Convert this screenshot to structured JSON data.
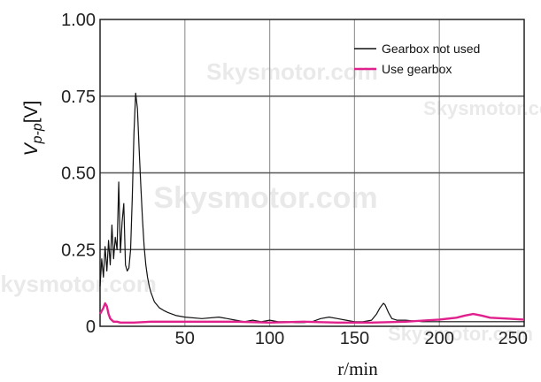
{
  "chart_data": {
    "type": "line",
    "xlabel": "r/min",
    "ylabel": "V",
    "ylabel_sub": "p-p",
    "ylabel_unit": "[V]",
    "xlim": [
      0,
      250
    ],
    "ylim": [
      0,
      1.0
    ],
    "xticks": [
      50,
      100,
      150,
      200,
      250
    ],
    "xtick_labels": [
      "50",
      "100",
      "150",
      "200",
      "250"
    ],
    "yticks": [
      0,
      0.25,
      0.5,
      0.75,
      1.0
    ],
    "ytick_labels": [
      "0",
      "0.25",
      "0.50",
      "0.75",
      "1.00"
    ],
    "grid": true,
    "legend_position": "top-right",
    "watermark": "Skysmotor.com",
    "series": [
      {
        "name": "Gearbox not used",
        "color": "#111111",
        "x": [
          0,
          1,
          2,
          3,
          4,
          5,
          6,
          7,
          8,
          9,
          10,
          11,
          12,
          13,
          14,
          15,
          16,
          17,
          18,
          19,
          20,
          21,
          22,
          23,
          24,
          25,
          26,
          27,
          28,
          29,
          30,
          32,
          35,
          38,
          40,
          45,
          50,
          60,
          70,
          75,
          80,
          85,
          90,
          95,
          100,
          105,
          110,
          115,
          120,
          125,
          130,
          135,
          140,
          145,
          150,
          155,
          160,
          163,
          165,
          167,
          168,
          170,
          172,
          175,
          180,
          190,
          200,
          210,
          220,
          230,
          240,
          250
        ],
        "y": [
          0.13,
          0.22,
          0.16,
          0.26,
          0.18,
          0.28,
          0.2,
          0.33,
          0.22,
          0.29,
          0.25,
          0.47,
          0.24,
          0.34,
          0.4,
          0.2,
          0.18,
          0.19,
          0.25,
          0.42,
          0.63,
          0.76,
          0.71,
          0.58,
          0.46,
          0.35,
          0.26,
          0.2,
          0.16,
          0.13,
          0.11,
          0.08,
          0.06,
          0.05,
          0.045,
          0.035,
          0.03,
          0.025,
          0.03,
          0.025,
          0.02,
          0.015,
          0.02,
          0.015,
          0.02,
          0.015,
          0.015,
          0.012,
          0.012,
          0.015,
          0.025,
          0.03,
          0.025,
          0.02,
          0.015,
          0.015,
          0.02,
          0.04,
          0.06,
          0.075,
          0.07,
          0.045,
          0.025,
          0.02,
          0.02,
          0.015,
          0.015,
          0.015,
          0.015,
          0.015,
          0.015,
          0.015
        ]
      },
      {
        "name": "Use gearbox",
        "color": "#e0208c",
        "x": [
          0,
          1,
          2,
          3,
          4,
          5,
          6,
          7,
          8,
          10,
          12,
          15,
          20,
          30,
          40,
          50,
          60,
          80,
          100,
          120,
          140,
          160,
          180,
          200,
          210,
          215,
          220,
          225,
          230,
          240,
          250
        ],
        "y": [
          0.04,
          0.05,
          0.06,
          0.075,
          0.065,
          0.04,
          0.025,
          0.02,
          0.015,
          0.015,
          0.012,
          0.012,
          0.012,
          0.015,
          0.015,
          0.015,
          0.015,
          0.015,
          0.012,
          0.015,
          0.012,
          0.012,
          0.015,
          0.022,
          0.028,
          0.035,
          0.04,
          0.035,
          0.028,
          0.025,
          0.022
        ]
      }
    ]
  }
}
